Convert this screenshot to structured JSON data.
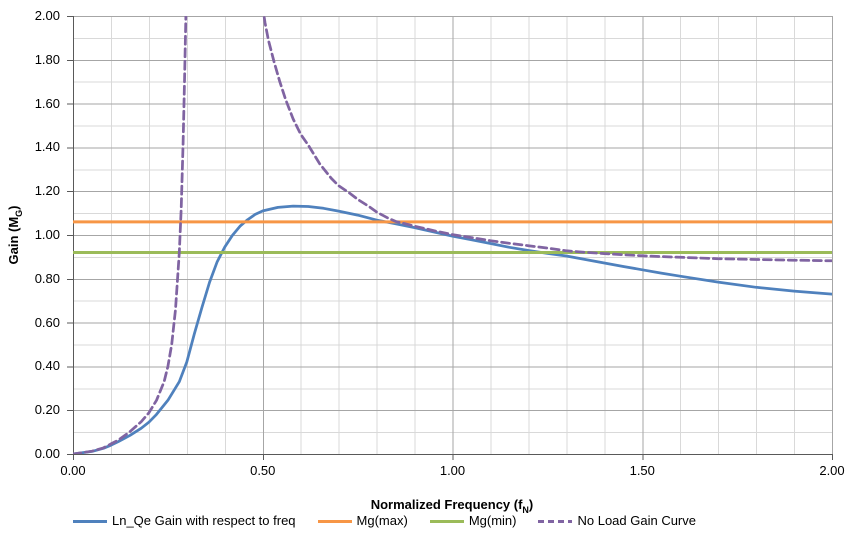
{
  "chart_data": {
    "type": "line",
    "title": "",
    "xlabel": {
      "pre": "Normalized Frequency (f",
      "sub": "N",
      "post": ")"
    },
    "ylabel": {
      "pre": "Gain (M",
      "sub": "G",
      "post": ")"
    },
    "x_axis": {
      "min": 0,
      "max": 2,
      "major": 0.5,
      "minor": 0.1,
      "ticks": [
        "0.00",
        "0.50",
        "1.00",
        "1.50",
        "2.00"
      ]
    },
    "y_axis": {
      "min": 0,
      "max": 2,
      "major": 0.2,
      "minor": 0.1,
      "ticks": [
        "0.00",
        "0.20",
        "0.40",
        "0.60",
        "0.80",
        "1.00",
        "1.20",
        "1.40",
        "1.60",
        "1.80",
        "2.00"
      ]
    },
    "grid": "major-and-minor",
    "legend_position": "bottom",
    "grid_major_color": "#A6A6A6",
    "grid_minor_color": "#D9D9D9",
    "axis_color": "#595959",
    "series": [
      {
        "name": "Ln_Qe Gain with respect to freq",
        "color": "#4F81BD",
        "dash": false,
        "segments": [
          [
            [
              0,
              0
            ],
            [
              0.05,
              0.012
            ],
            [
              0.08,
              0.026
            ],
            [
              0.1,
              0.04
            ],
            [
              0.12,
              0.057
            ],
            [
              0.15,
              0.085
            ],
            [
              0.18,
              0.118
            ],
            [
              0.2,
              0.145
            ],
            [
              0.22,
              0.181
            ],
            [
              0.25,
              0.245
            ],
            [
              0.28,
              0.33
            ],
            [
              0.3,
              0.42
            ],
            [
              0.32,
              0.55
            ],
            [
              0.34,
              0.67
            ],
            [
              0.36,
              0.785
            ],
            [
              0.38,
              0.878
            ],
            [
              0.4,
              0.945
            ],
            [
              0.42,
              0.998
            ],
            [
              0.44,
              1.04
            ],
            [
              0.46,
              1.07
            ],
            [
              0.48,
              1.094
            ],
            [
              0.5,
              1.11
            ],
            [
              0.54,
              1.126
            ],
            [
              0.58,
              1.132
            ],
            [
              0.62,
              1.13
            ],
            [
              0.66,
              1.122
            ],
            [
              0.7,
              1.109
            ],
            [
              0.75,
              1.091
            ],
            [
              0.8,
              1.068
            ],
            [
              0.85,
              1.051
            ],
            [
              0.9,
              1.034
            ],
            [
              0.95,
              1.014
            ],
            [
              1,
              0.995
            ],
            [
              1.05,
              0.978
            ],
            [
              1.1,
              0.961
            ],
            [
              1.15,
              0.944
            ],
            [
              1.2,
              0.929
            ],
            [
              1.25,
              0.916
            ],
            [
              1.3,
              0.904
            ],
            [
              1.35,
              0.888
            ],
            [
              1.4,
              0.872
            ],
            [
              1.45,
              0.856
            ],
            [
              1.5,
              0.841
            ],
            [
              1.55,
              0.826
            ],
            [
              1.6,
              0.812
            ],
            [
              1.7,
              0.785
            ],
            [
              1.8,
              0.761
            ],
            [
              1.9,
              0.744
            ],
            [
              2,
              0.73
            ]
          ]
        ]
      },
      {
        "name": "Mg(max)",
        "color": "#F79646",
        "dash": false,
        "value": 1.06,
        "segments": [
          [
            [
              0,
              1.06
            ],
            [
              2,
              1.06
            ]
          ]
        ]
      },
      {
        "name": "Mg(min)",
        "color": "#9BBB59",
        "dash": false,
        "value": 0.92,
        "segments": [
          [
            [
              0,
              0.92
            ],
            [
              2,
              0.92
            ]
          ]
        ]
      },
      {
        "name": "No Load Gain Curve",
        "color": "#8064A2",
        "dash": true,
        "asymptote_x": 0.3,
        "segments": [
          [
            [
              0,
              0
            ],
            [
              0.05,
              0.013
            ],
            [
              0.08,
              0.028
            ],
            [
              0.1,
              0.046
            ],
            [
              0.12,
              0.064
            ],
            [
              0.15,
              0.102
            ],
            [
              0.18,
              0.148
            ],
            [
              0.2,
              0.188
            ],
            [
              0.22,
              0.245
            ],
            [
              0.24,
              0.33
            ],
            [
              0.25,
              0.4
            ],
            [
              0.26,
              0.5
            ],
            [
              0.27,
              0.66
            ],
            [
              0.28,
              0.92
            ],
            [
              0.285,
              1.12
            ],
            [
              0.29,
              1.42
            ],
            [
              0.294,
              1.72
            ],
            [
              0.298,
              2.05
            ]
          ],
          [
            [
              0.499,
              2.05
            ],
            [
              0.506,
              1.97
            ],
            [
              0.515,
              1.89
            ],
            [
              0.53,
              1.79
            ],
            [
              0.545,
              1.7
            ],
            [
              0.56,
              1.62
            ],
            [
              0.58,
              1.53
            ],
            [
              0.6,
              1.46
            ],
            [
              0.62,
              1.41
            ],
            [
              0.65,
              1.325
            ],
            [
              0.68,
              1.26
            ],
            [
              0.7,
              1.225
            ],
            [
              0.73,
              1.19
            ],
            [
              0.75,
              1.163
            ],
            [
              0.78,
              1.13
            ],
            [
              0.8,
              1.105
            ],
            [
              0.83,
              1.077
            ],
            [
              0.85,
              1.062
            ],
            [
              0.9,
              1.04
            ],
            [
              0.95,
              1.02
            ],
            [
              1,
              1.002
            ],
            [
              1.05,
              0.988
            ],
            [
              1.1,
              0.974
            ],
            [
              1.15,
              0.962
            ],
            [
              1.2,
              0.951
            ],
            [
              1.25,
              0.94
            ],
            [
              1.3,
              0.928
            ],
            [
              1.35,
              0.921
            ],
            [
              1.4,
              0.915
            ],
            [
              1.45,
              0.91
            ],
            [
              1.5,
              0.905
            ],
            [
              1.6,
              0.898
            ],
            [
              1.7,
              0.892
            ],
            [
              1.8,
              0.888
            ],
            [
              1.9,
              0.885
            ],
            [
              2,
              0.882
            ]
          ]
        ]
      }
    ]
  }
}
